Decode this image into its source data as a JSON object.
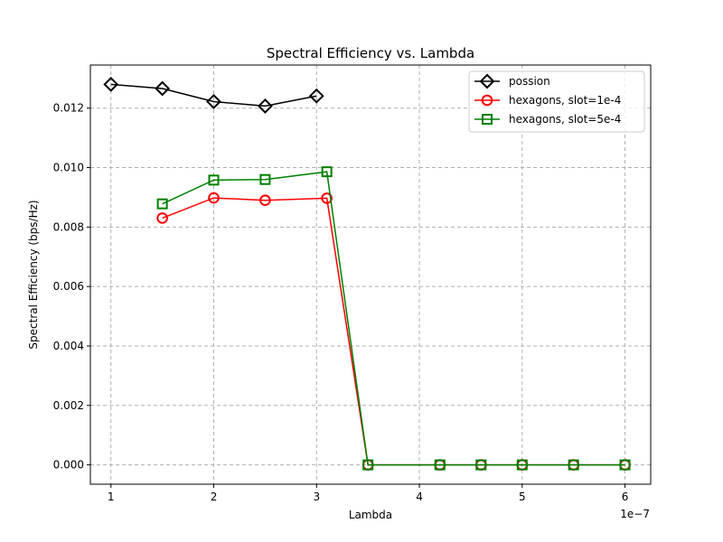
{
  "chart_data": {
    "type": "line",
    "title": "Spectral Efficiency vs. Lambda",
    "xlabel": "Lambda",
    "ylabel": "Spectral Efficiency (bps/Hz)",
    "x_offset_label": "1e−7",
    "xlim": [
      0.8,
      6.25
    ],
    "ylim": [
      -0.00065,
      0.01345
    ],
    "x_ticks": [
      1,
      2,
      3,
      4,
      5,
      6
    ],
    "x_tick_labels": [
      "1",
      "2",
      "3",
      "4",
      "5",
      "6"
    ],
    "y_ticks": [
      0.0,
      0.002,
      0.004,
      0.006,
      0.008,
      0.01,
      0.012
    ],
    "y_tick_labels": [
      "0.000",
      "0.002",
      "0.004",
      "0.006",
      "0.008",
      "0.010",
      "0.012"
    ],
    "grid": true,
    "legend_position": "top-right",
    "series": [
      {
        "name": "possion",
        "color": "#000000",
        "marker": "diamond",
        "x": [
          1.0,
          1.5,
          2.0,
          2.5,
          3.0
        ],
        "y": [
          0.0128,
          0.01266,
          0.01222,
          0.01207,
          0.01241
        ]
      },
      {
        "name": "hexagons, slot=1e-4",
        "color": "#ff0000",
        "marker": "circle",
        "x": [
          1.5,
          2.0,
          2.5,
          3.1,
          3.5,
          4.2,
          4.6,
          5.0,
          5.5,
          6.0
        ],
        "y": [
          0.0083,
          0.00898,
          0.0089,
          0.00897,
          0.0,
          0.0,
          0.0,
          0.0,
          0.0,
          0.0
        ]
      },
      {
        "name": "hexagons, slot=5e-4",
        "color": "#008000",
        "marker": "square",
        "x": [
          1.5,
          2.0,
          2.5,
          3.1,
          3.5,
          4.2,
          4.6,
          5.0,
          5.5,
          6.0
        ],
        "y": [
          0.00878,
          0.00958,
          0.0096,
          0.00986,
          0.0,
          0.0,
          0.0,
          0.0,
          0.0,
          0.0
        ]
      }
    ]
  }
}
